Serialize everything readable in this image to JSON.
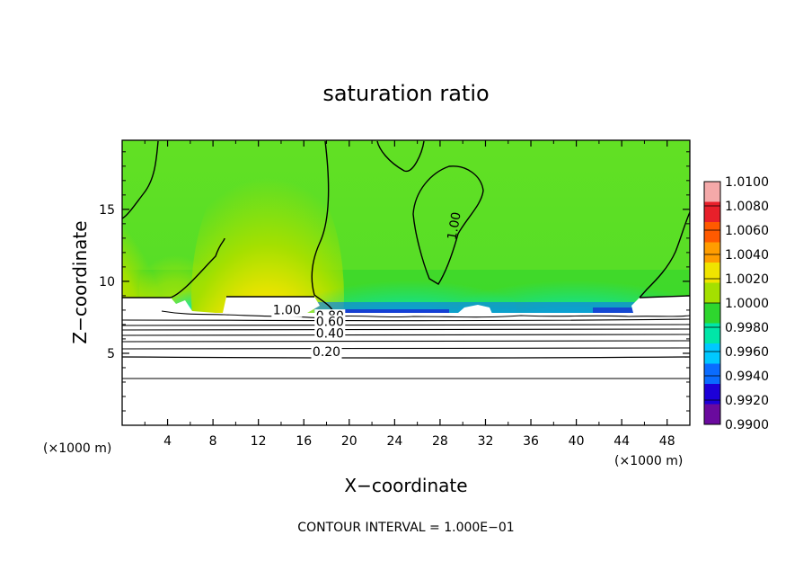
{
  "chart_data": {
    "type": "heatmap",
    "title": "saturation ratio",
    "xlabel": "X−coordinate",
    "ylabel": "Z−coordinate",
    "x_unit_label": "(×1000 m)",
    "x_unit_label_right": "(×1000 m)",
    "xlim": [
      0,
      50
    ],
    "ylim": [
      0,
      19.8
    ],
    "x_ticks": [
      4,
      8,
      12,
      16,
      20,
      24,
      28,
      32,
      36,
      40,
      44,
      48
    ],
    "x_tick_labels": [
      "4",
      "8",
      "12",
      "16",
      "20",
      "24",
      "28",
      "32",
      "36",
      "40",
      "44",
      "48"
    ],
    "y_ticks": [
      5,
      10,
      15
    ],
    "y_tick_labels": [
      "5",
      "10",
      "15"
    ],
    "colorbar": {
      "levels": [
        "1.0100",
        "1.0080",
        "1.0060",
        "1.0040",
        "1.0020",
        "1.0000",
        "0.9980",
        "0.9960",
        "0.9940",
        "0.9920",
        "0.9900"
      ],
      "colors": [
        "#f4a9a9",
        "#e8202a",
        "#ff5a00",
        "#ff9d00",
        "#f0e400",
        "#a4e000",
        "#2ed62e",
        "#00e6a8",
        "#00c8ff",
        "#0a6cff",
        "#1c00d8",
        "#6a0a9e"
      ]
    },
    "contour_labels": [
      {
        "text": "1.00",
        "x": 14.5,
        "z": 7.7
      },
      {
        "text": "0.80",
        "x": 18.3,
        "z": 7.3
      },
      {
        "text": "0.60",
        "x": 18.3,
        "z": 6.9
      },
      {
        "text": "0.40",
        "x": 18.3,
        "z": 6.1
      },
      {
        "text": "0.20",
        "x": 18.0,
        "z": 4.8
      },
      {
        "text": "1.00",
        "x": 29.6,
        "z": 13.8
      }
    ],
    "footer": "CONTOUR INTERVAL = 1.000E−01"
  }
}
